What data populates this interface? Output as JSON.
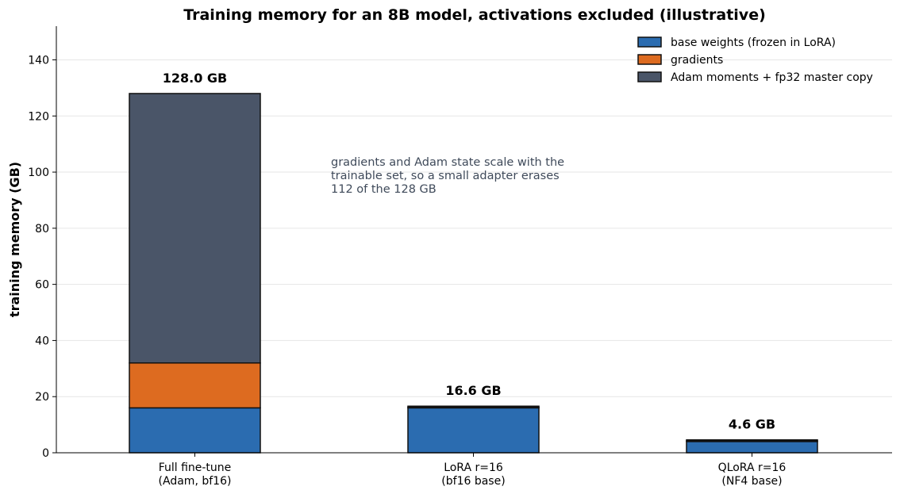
{
  "chart_data": {
    "type": "bar",
    "stacked": true,
    "title": "Training memory for an 8B model, activations excluded (illustrative)",
    "xlabel": "",
    "ylabel": "training memory (GB)",
    "ylim": [
      0,
      152
    ],
    "yticks": [
      0,
      20,
      40,
      60,
      80,
      100,
      120,
      140
    ],
    "grid": "horizontal",
    "legend_position": "top-right",
    "categories": [
      [
        "Full fine-tune",
        "(Adam, bf16)"
      ],
      [
        "LoRA r=16",
        "(bf16 base)"
      ],
      [
        "QLoRA r=16",
        "(NF4 base)"
      ]
    ],
    "series": [
      {
        "name": "base weights (frozen in LoRA)",
        "color": "#2b6cb0",
        "values": [
          16.0,
          16.0,
          4.0
        ]
      },
      {
        "name": "gradients",
        "color": "#dd6b20",
        "values": [
          16.0,
          0.2,
          0.2
        ]
      },
      {
        "name": "Adam moments + fp32 master copy",
        "color": "#4a5568",
        "values": [
          96.0,
          0.4,
          0.4
        ]
      }
    ],
    "totals": [
      "128.0 GB",
      "16.6 GB",
      "4.6 GB"
    ],
    "annotation": [
      "gradients and Adam state scale with the",
      "trainable set, so a small adapter erases",
      "112 of the 128 GB"
    ]
  }
}
